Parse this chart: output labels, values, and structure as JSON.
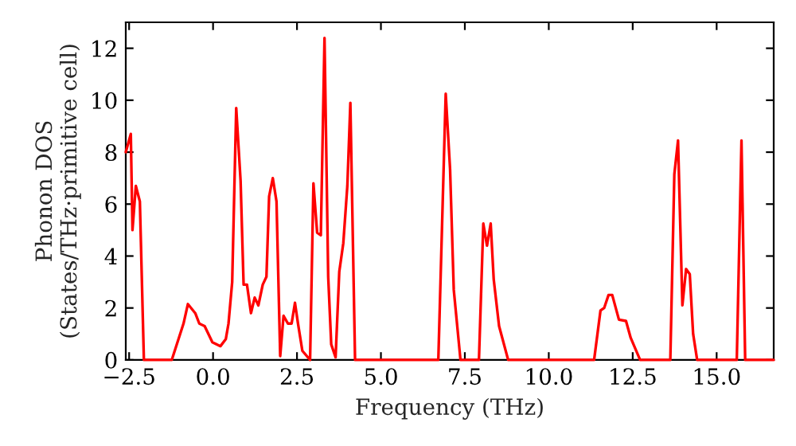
{
  "chart_data": {
    "type": "line",
    "xlabel": "Frequency (THz)",
    "ylabel": "Phonon DOS\n(States/THz·primitive cell)",
    "series": [
      {
        "color": "#ff0000",
        "x": [
          -2.6,
          -2.45,
          -2.4,
          -2.3,
          -2.18,
          -2.06,
          -1.23,
          -0.88,
          -0.75,
          -0.53,
          -0.41,
          -0.25,
          -0.02,
          0.22,
          0.38,
          0.46,
          0.57,
          0.69,
          0.82,
          0.91,
          1.01,
          1.13,
          1.24,
          1.35,
          1.48,
          1.59,
          1.67,
          1.78,
          1.89,
          2.0,
          2.1,
          2.23,
          2.34,
          2.44,
          2.53,
          2.66,
          2.86,
          2.89,
          2.99,
          3.1,
          3.21,
          3.32,
          3.43,
          3.52,
          3.65,
          3.76,
          3.88,
          4.0,
          4.09,
          4.23,
          6.71,
          6.93,
          7.06,
          7.17,
          7.37,
          7.92,
          8.05,
          8.16,
          8.27,
          8.36,
          8.52,
          8.79,
          11.35,
          11.54,
          11.65,
          11.78,
          11.89,
          12.09,
          12.3,
          12.44,
          12.72,
          13.62,
          13.74,
          13.85,
          13.98,
          14.09,
          14.2,
          14.3,
          14.42,
          15.6,
          15.74,
          15.85,
          16.7
        ],
        "values": [
          8.0,
          8.7,
          5.0,
          6.7,
          6.1,
          0,
          0,
          1.4,
          2.15,
          1.8,
          1.4,
          1.3,
          0.68,
          0.53,
          0.8,
          1.4,
          3.0,
          9.7,
          6.9,
          2.9,
          2.9,
          1.8,
          2.4,
          2.1,
          2.9,
          3.2,
          6.3,
          7.0,
          6.1,
          0.15,
          1.7,
          1.4,
          1.4,
          2.2,
          1.4,
          0.35,
          0.05,
          0,
          6.8,
          4.9,
          4.8,
          12.4,
          3.2,
          0.6,
          0.1,
          3.4,
          4.5,
          6.7,
          9.9,
          0,
          0,
          10.25,
          7.35,
          2.7,
          0,
          0,
          5.25,
          4.4,
          5.25,
          3.1,
          1.3,
          0,
          0,
          1.9,
          2.0,
          2.5,
          2.5,
          1.55,
          1.5,
          0.85,
          0,
          0,
          7.15,
          8.45,
          2.1,
          3.5,
          3.3,
          1.0,
          0,
          0,
          8.45,
          0,
          0
        ]
      }
    ],
    "xlim": [
      -2.6,
      16.7
    ],
    "ylim": [
      0,
      13
    ],
    "xticks": [
      {
        "value": -2.5,
        "label": "−2.5"
      },
      {
        "value": 0,
        "label": "0.0"
      },
      {
        "value": 2.5,
        "label": "2.5"
      },
      {
        "value": 5,
        "label": "5.0"
      },
      {
        "value": 7.5,
        "label": "7.5"
      },
      {
        "value": 10,
        "label": "10.0"
      },
      {
        "value": 12.5,
        "label": "12.5"
      },
      {
        "value": 15,
        "label": "15.0"
      }
    ],
    "yticks": [
      0,
      2,
      4,
      6,
      8,
      10,
      12
    ],
    "grid": false,
    "legend": false
  }
}
